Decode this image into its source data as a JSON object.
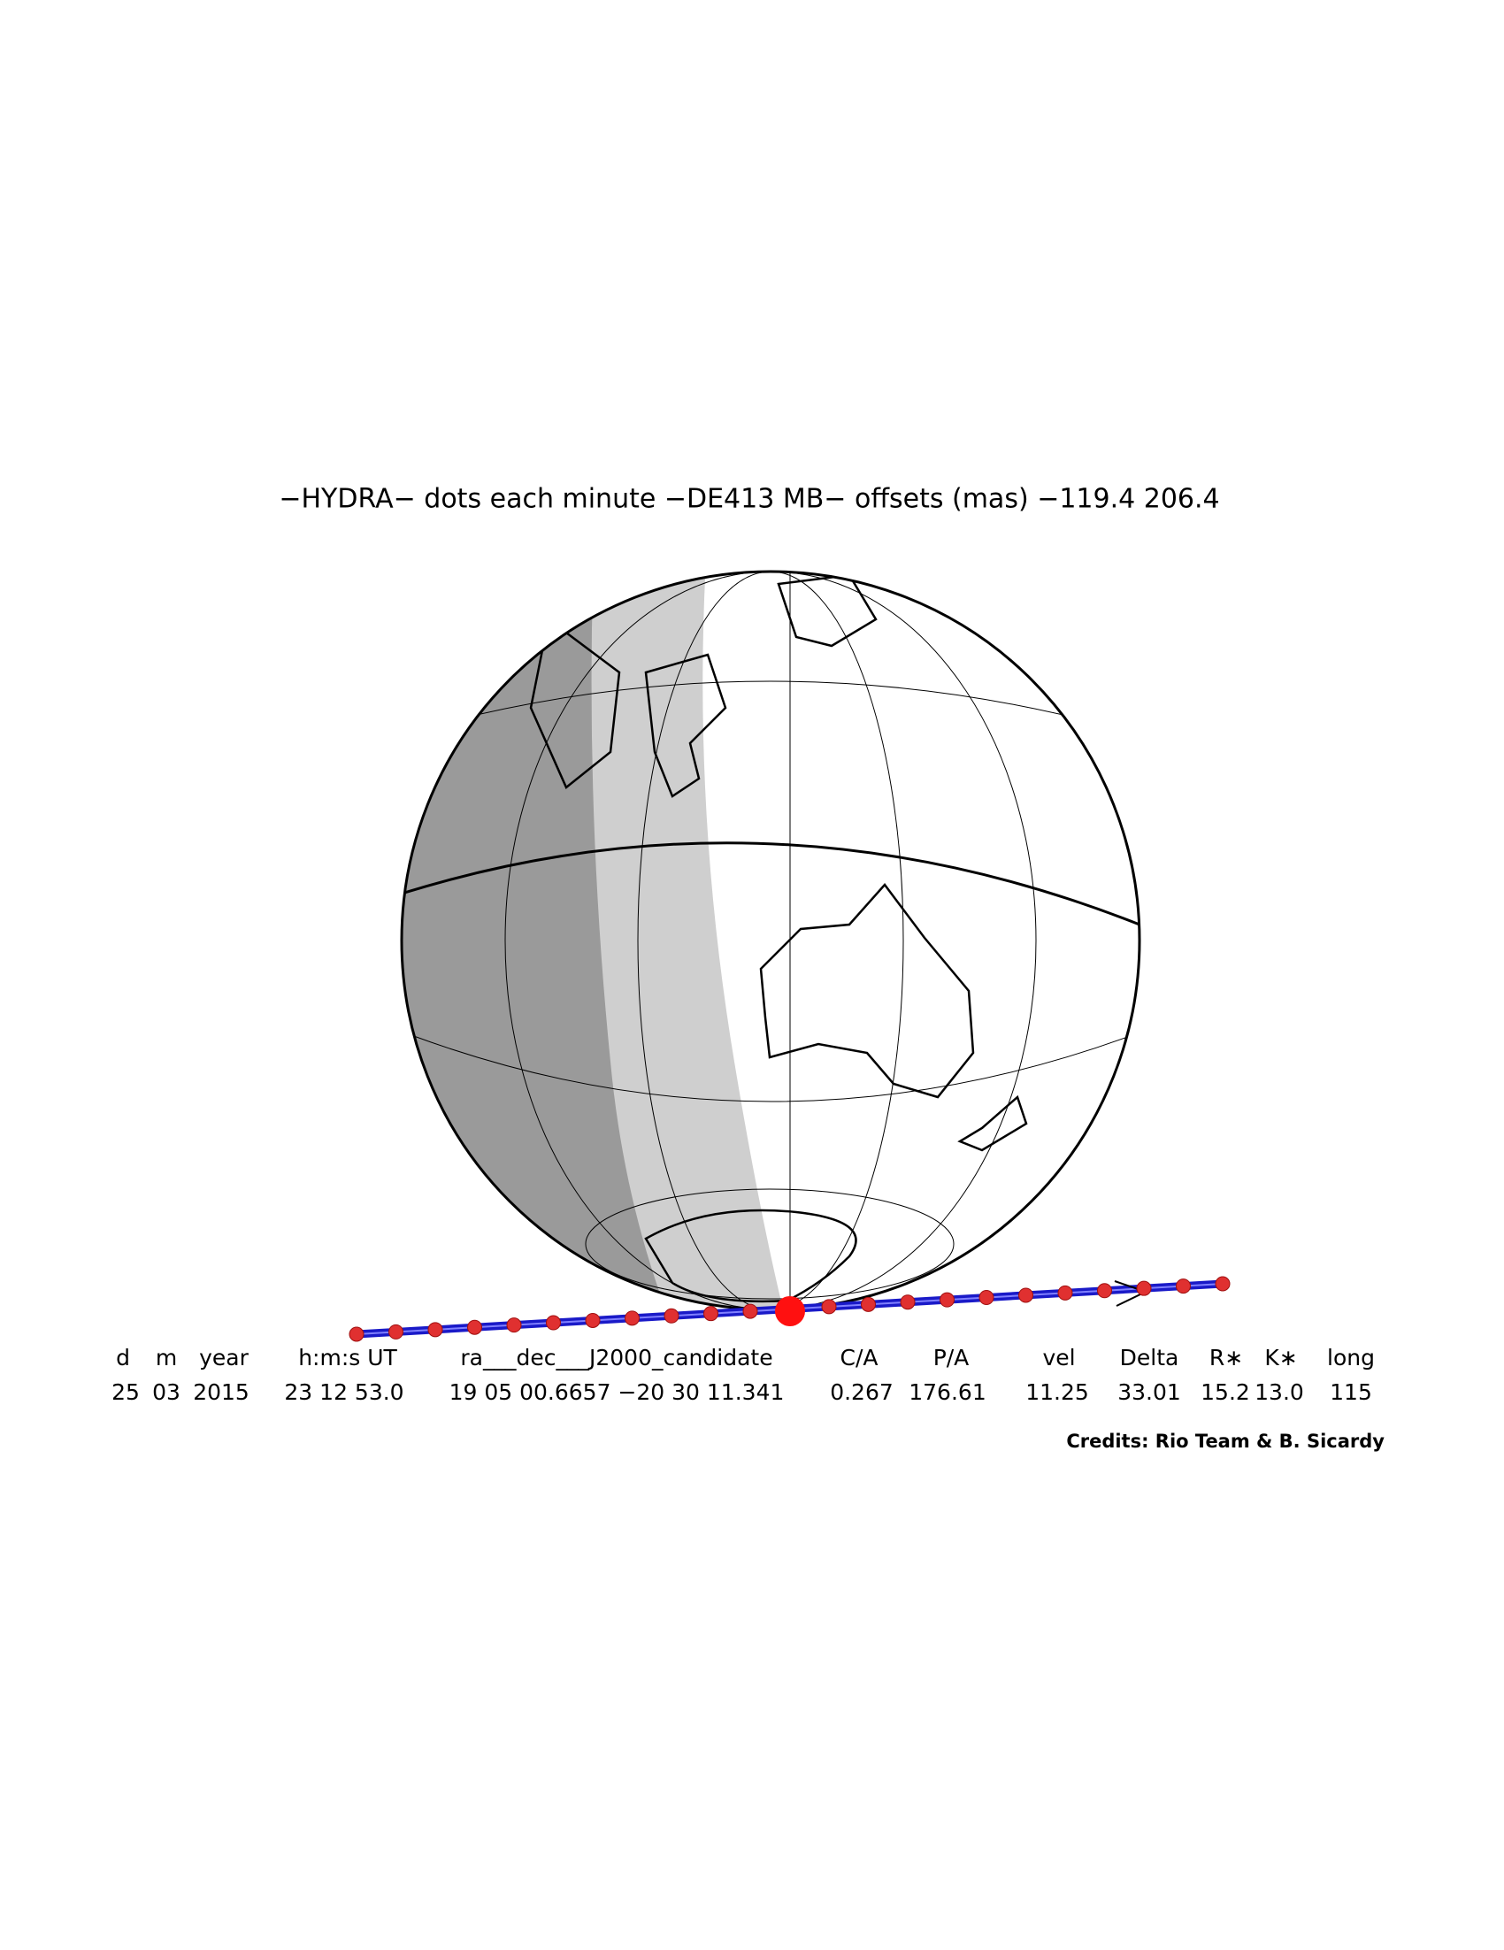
{
  "header": {
    "title": "−HYDRA− dots each minute −DE413 MB− offsets (mas) −119.4   206.4"
  },
  "table": {
    "columns": [
      "d",
      "m",
      "year",
      "h:m:s UT",
      "ra___dec___J2000_candidate",
      "C/A",
      "P/A",
      "vel",
      "Delta",
      "R∗",
      "K∗",
      "long"
    ],
    "rows": [
      [
        "25",
        "03",
        "2015",
        "23 12 53.0",
        "19 05 00.6657 −20 30 11.341",
        "0.267",
        "176.61",
        "11.25",
        "33.01",
        "15.2",
        "13.0",
        "115"
      ]
    ]
  },
  "footer": {
    "credits": "Credits: Rio Team & B. Sicardy"
  }
}
